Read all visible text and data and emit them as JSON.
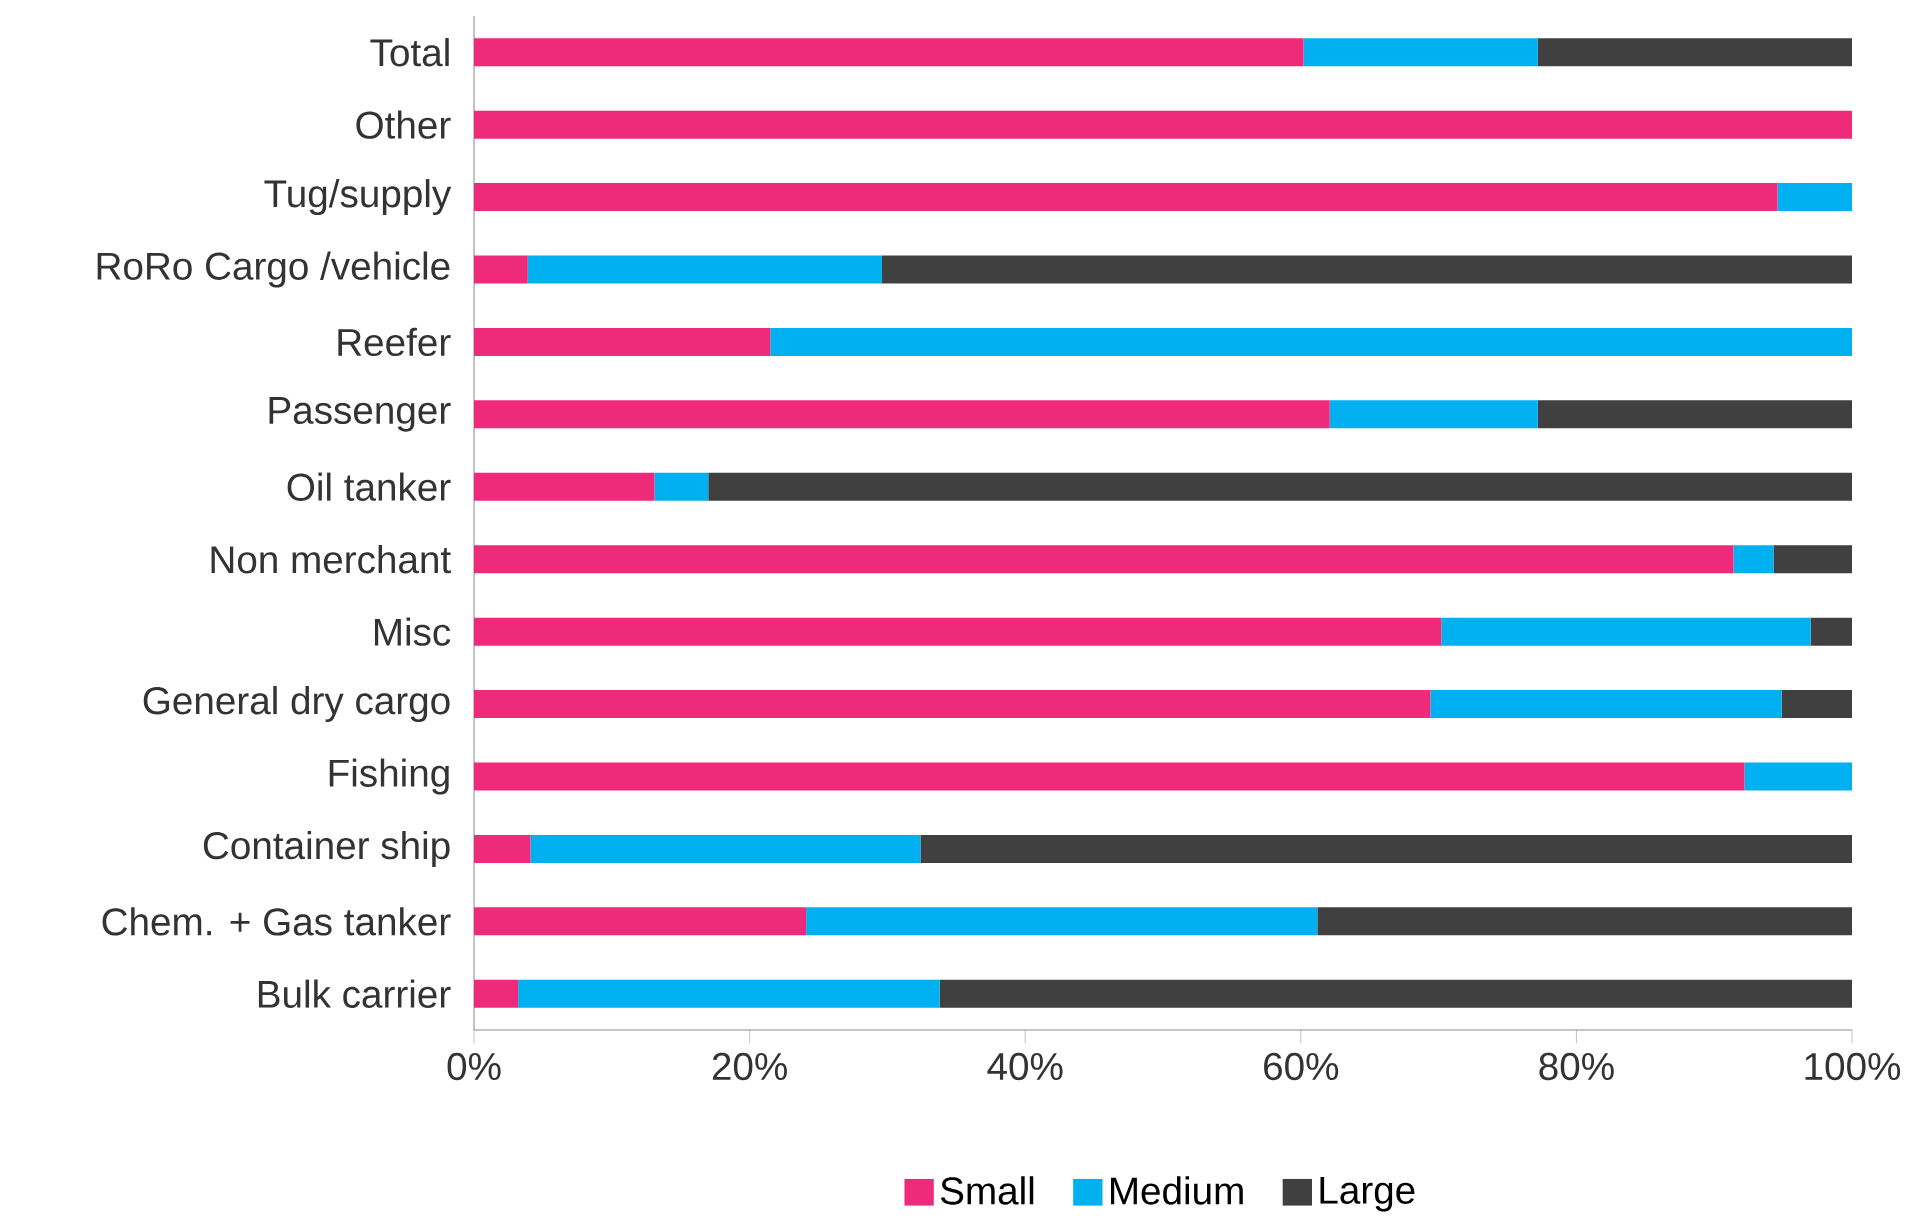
{
  "chart_data": {
    "type": "bar",
    "orientation": "horizontal",
    "stacked": true,
    "categories": [
      "Total",
      "Other",
      "Tug/supply",
      "RoRo Cargo /vehicle",
      "Reefer",
      "Passenger",
      "Oil tanker",
      "Non merchant",
      "Misc",
      "General dry cargo",
      "Fishing",
      "Container ship",
      "Chem. + Gas tanker",
      "Bulk carrier"
    ],
    "series": [
      {
        "name": "Small",
        "color": "#ee2a7b",
        "values": [
          60.2,
          100,
          94.6,
          3.9,
          21.5,
          62.1,
          13.1,
          91.4,
          70.2,
          69.4,
          92.2,
          4.1,
          24.1,
          3.2
        ]
      },
      {
        "name": "Medium",
        "color": "#00b0f0",
        "values": [
          17.0,
          0,
          5.4,
          25.7,
          78.5,
          15.1,
          3.9,
          2.9,
          26.8,
          25.5,
          7.8,
          28.3,
          37.1,
          30.6
        ]
      },
      {
        "name": "Large",
        "color": "#404040",
        "values": [
          22.8,
          0,
          0,
          70.4,
          0,
          22.8,
          83.0,
          5.7,
          3.0,
          5.1,
          0,
          67.6,
          38.8,
          66.2
        ]
      }
    ],
    "xlim": [
      0,
      100
    ],
    "xticks": [
      {
        "value": 0,
        "label": "0%"
      },
      {
        "value": 20,
        "label": "20%"
      },
      {
        "value": 40,
        "label": "40%"
      },
      {
        "value": 60,
        "label": "60%"
      },
      {
        "value": 80,
        "label": "80%"
      },
      {
        "value": 100,
        "label": "100%"
      }
    ],
    "grid": false,
    "legend": "bottom"
  }
}
